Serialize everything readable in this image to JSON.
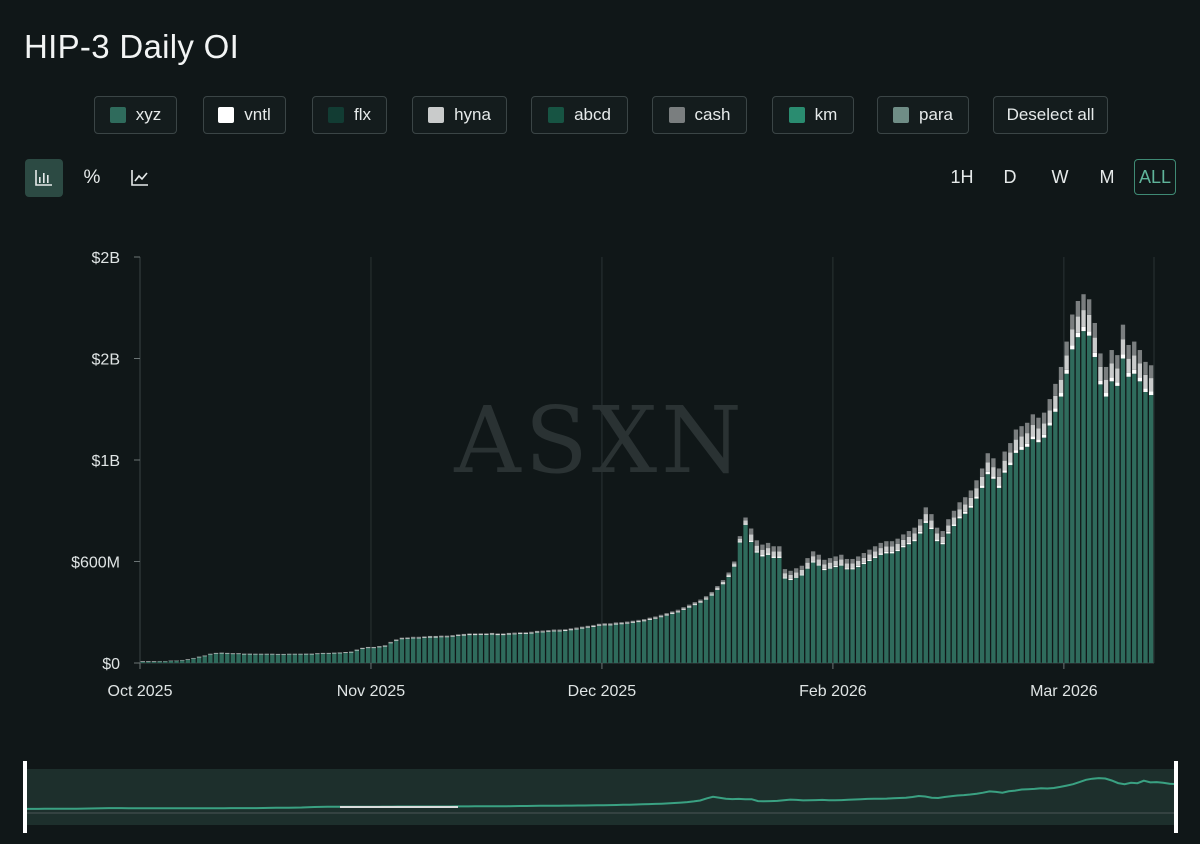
{
  "title": "HIP-3 Daily OI",
  "legend": [
    {
      "label": "xyz",
      "color": "#2f6b5c"
    },
    {
      "label": "vntl",
      "color": "#ffffff"
    },
    {
      "label": "flx",
      "color": "#123c33"
    },
    {
      "label": "hyna",
      "color": "#c9cbcb"
    },
    {
      "label": "abcd",
      "color": "#175443"
    },
    {
      "label": "cash",
      "color": "#7a7e7f"
    },
    {
      "label": "km",
      "color": "#2a8c70"
    },
    {
      "label": "para",
      "color": "#6f8d86"
    }
  ],
  "deselect_label": "Deselect all",
  "view_tools": [
    {
      "icon": "bar-chart-icon",
      "glyph": "",
      "active": true
    },
    {
      "icon": "percent-icon",
      "glyph": "%",
      "active": false
    },
    {
      "icon": "line-chart-icon",
      "glyph": "",
      "active": false
    }
  ],
  "ranges": [
    {
      "label": "1H",
      "active": false
    },
    {
      "label": "D",
      "active": false
    },
    {
      "label": "W",
      "active": false
    },
    {
      "label": "M",
      "active": false
    },
    {
      "label": "ALL",
      "active": true
    }
  ],
  "watermark": "ASXN",
  "chart_data": {
    "type": "bar",
    "stacked": true,
    "title": "HIP-3 Daily OI",
    "y_tick_labels": [
      "$0",
      "$600M",
      "$1B",
      "$2B",
      "$2B"
    ],
    "y_tick_values": [
      0,
      600,
      1200,
      1800,
      2400
    ],
    "ylim": [
      0,
      2400
    ],
    "y_unit": "millions USD",
    "x_tick_labels": [
      "Oct 2025",
      "Nov 2025",
      "Dec 2025",
      "Feb 2026",
      "Mar 2026"
    ],
    "x_tick_days": [
      0,
      41,
      82,
      123,
      164
    ],
    "start_label": "Oct 2025",
    "grid": "vertical",
    "legend_position": "top",
    "series": [
      {
        "name": "xyz",
        "color": "#2f6b5c"
      },
      {
        "name": "vntl",
        "color": "#ffffff"
      },
      {
        "name": "flx",
        "color": "#123c33"
      },
      {
        "name": "hyna",
        "color": "#c9cbcb"
      },
      {
        "name": "abcd",
        "color": "#175443"
      },
      {
        "name": "cash",
        "color": "#7a7e7f"
      },
      {
        "name": "km",
        "color": "#2a8c70"
      },
      {
        "name": "para",
        "color": "#6f8d86"
      }
    ],
    "daily_totals": [
      10,
      10,
      10,
      12,
      12,
      15,
      15,
      18,
      22,
      30,
      38,
      45,
      55,
      60,
      62,
      60,
      58,
      58,
      56,
      56,
      55,
      55,
      55,
      55,
      54,
      54,
      55,
      55,
      55,
      56,
      56,
      58,
      60,
      60,
      62,
      63,
      65,
      68,
      80,
      90,
      95,
      95,
      100,
      105,
      125,
      140,
      150,
      152,
      155,
      155,
      158,
      160,
      160,
      162,
      162,
      165,
      170,
      172,
      175,
      175,
      176,
      176,
      178,
      175,
      175,
      178,
      180,
      182,
      182,
      185,
      190,
      192,
      195,
      198,
      198,
      200,
      205,
      210,
      215,
      220,
      225,
      232,
      235,
      235,
      240,
      242,
      245,
      250,
      255,
      260,
      268,
      275,
      285,
      295,
      305,
      315,
      330,
      345,
      360,
      375,
      395,
      420,
      455,
      490,
      535,
      600,
      750,
      860,
      795,
      725,
      700,
      710,
      690,
      690,
      555,
      545,
      560,
      575,
      620,
      660,
      640,
      610,
      620,
      630,
      640,
      615,
      615,
      630,
      650,
      670,
      690,
      710,
      720,
      720,
      735,
      760,
      780,
      800,
      850,
      920,
      880,
      800,
      780,
      850,
      900,
      950,
      980,
      1020,
      1080,
      1150,
      1240,
      1210,
      1150,
      1250,
      1300,
      1380,
      1400,
      1420,
      1470,
      1450,
      1480,
      1560,
      1650,
      1750,
      1900,
      2060,
      2140,
      2180,
      2150,
      2010,
      1830,
      1750,
      1850,
      1820,
      2000,
      1880,
      1900,
      1850,
      1780,
      1760
    ],
    "navigator_date_range": [
      "Oct 2025",
      "Mar 2026"
    ]
  }
}
